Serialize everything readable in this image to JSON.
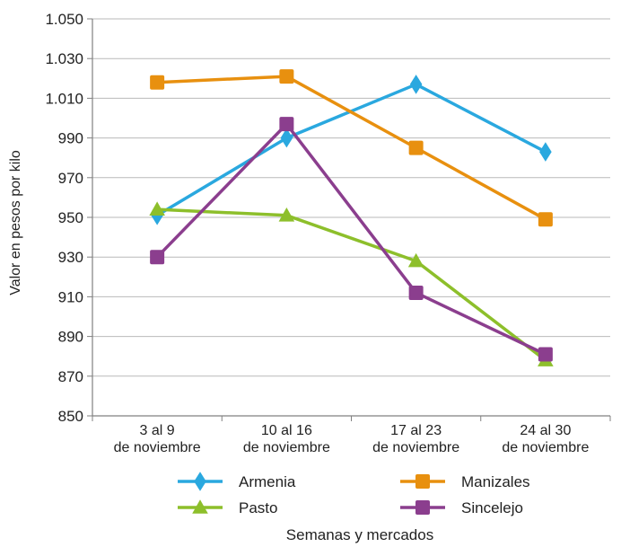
{
  "chart_data": {
    "type": "line",
    "xlabel": "Semanas y mercados",
    "ylabel": "Valor en pesos por kilo",
    "ylim": [
      850,
      1050
    ],
    "yticks": [
      "850",
      "870",
      "890",
      "910",
      "930",
      "950",
      "970",
      "990",
      "1.010",
      "1.030",
      "1.050"
    ],
    "categories": [
      [
        "3 al 9",
        "de noviembre"
      ],
      [
        "10 al 16",
        "de noviembre"
      ],
      [
        "17 al 23",
        "de noviembre"
      ],
      [
        "24 al 30",
        "de noviembre"
      ]
    ],
    "grid": true,
    "legend": "bottom",
    "series": [
      {
        "name": "Armenia",
        "color": "#2AA8DF",
        "marker": "diamond",
        "values": [
          951,
          990,
          1017,
          983
        ]
      },
      {
        "name": "Manizales",
        "color": "#E8900F",
        "marker": "square",
        "values": [
          1018,
          1021,
          985,
          949
        ]
      },
      {
        "name": "Pasto",
        "color": "#8DBF2B",
        "marker": "triangle",
        "values": [
          954,
          951,
          928,
          878
        ]
      },
      {
        "name": "Sincelejo",
        "color": "#8B3E8E",
        "marker": "square",
        "values": [
          930,
          997,
          912,
          881
        ]
      }
    ]
  }
}
